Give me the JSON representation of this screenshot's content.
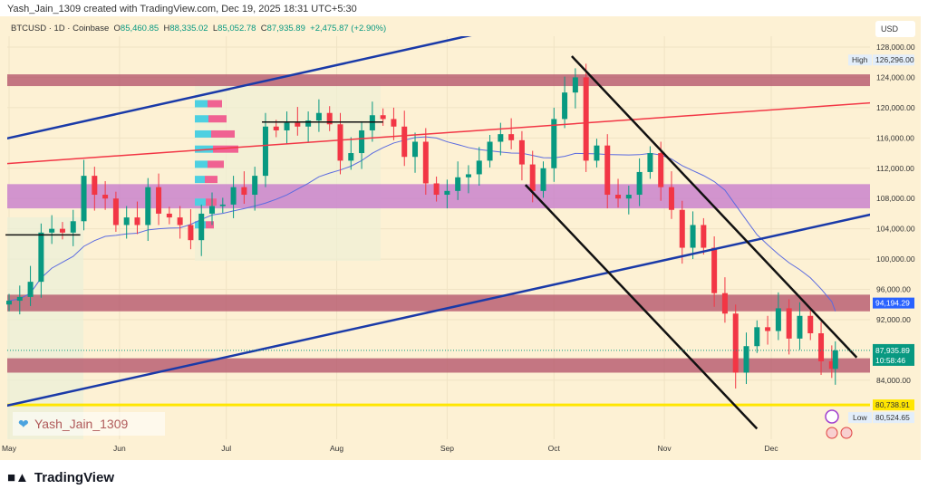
{
  "header": {
    "attribution": "Yash_Jain_1309 created with TradingView.com, Dec 19, 2025 18:31 UTC+5:30"
  },
  "legend": {
    "symbol": "BTCUSD · 1D · Coinbase",
    "o_label": "O",
    "o": "85,460.85",
    "h_label": "H",
    "h": "88,335.02",
    "l_label": "L",
    "l": "85,052.78",
    "c_label": "C",
    "c": "87,935.89",
    "change": "+2,475.87 (+2.90%)"
  },
  "watermark": {
    "text": "Yash_Jain_1309",
    "icon": "heart-icon"
  },
  "brand": {
    "text": "TradingView"
  },
  "currency": "USD",
  "colors": {
    "background": "#fdf1d4",
    "up": "#089981",
    "down": "#f23645",
    "ma": "#5b6be0",
    "channel": "#1a3aa8",
    "red_line": "#f23645",
    "zone_red": "#b5576d",
    "zone_purple": "#c77dcc",
    "support_yellow": "#ffe600",
    "last_price": "#089981",
    "ma_label": "#2962ff"
  },
  "chart_data": {
    "type": "candlestick",
    "symbol": "BTCUSD",
    "interval": "1D",
    "exchange": "Coinbase",
    "ylim": [
      78000,
      131000
    ],
    "xlim": [
      "2025-04-30",
      "2025-12-31"
    ],
    "y_ticks": [
      "128,000.00",
      "124,000.00",
      "120,000.00",
      "116,000.00",
      "112,000.00",
      "108,000.00",
      "104,000.00",
      "100,000.00",
      "96,000.00",
      "92,000.00",
      "84,000.00"
    ],
    "y_tick_values": [
      128000,
      124000,
      120000,
      116000,
      112000,
      108000,
      104000,
      100000,
      96000,
      92000,
      84000
    ],
    "x_ticks": [
      [
        "2025-05-01",
        "May"
      ],
      [
        "2025-06-01",
        "Jun"
      ],
      [
        "2025-07-01",
        "Jul"
      ],
      [
        "2025-08-01",
        "Aug"
      ],
      [
        "2025-09-01",
        "Sep"
      ],
      [
        "2025-10-01",
        "Oct"
      ],
      [
        "2025-11-01",
        "Nov"
      ],
      [
        "2025-12-01",
        "Dec"
      ]
    ],
    "closes": [
      [
        "2025-05-01",
        94500
      ],
      [
        "2025-05-04",
        95000
      ],
      [
        "2025-05-07",
        97000
      ],
      [
        "2025-05-10",
        103500
      ],
      [
        "2025-05-13",
        104000
      ],
      [
        "2025-05-16",
        103500
      ],
      [
        "2025-05-19",
        105000
      ],
      [
        "2025-05-22",
        111000
      ],
      [
        "2025-05-25",
        108500
      ],
      [
        "2025-05-28",
        108000
      ],
      [
        "2025-05-31",
        104500
      ],
      [
        "2025-06-03",
        105500
      ],
      [
        "2025-06-06",
        104500
      ],
      [
        "2025-06-09",
        109500
      ],
      [
        "2025-06-12",
        106000
      ],
      [
        "2025-06-15",
        105500
      ],
      [
        "2025-06-18",
        104500
      ],
      [
        "2025-06-21",
        102500
      ],
      [
        "2025-06-24",
        106000
      ],
      [
        "2025-06-27",
        107000
      ],
      [
        "2025-06-30",
        107200
      ],
      [
        "2025-07-03",
        109500
      ],
      [
        "2025-07-06",
        108500
      ],
      [
        "2025-07-09",
        111000
      ],
      [
        "2025-07-12",
        117500
      ],
      [
        "2025-07-15",
        117000
      ],
      [
        "2025-07-18",
        118000
      ],
      [
        "2025-07-21",
        117500
      ],
      [
        "2025-07-24",
        118300
      ],
      [
        "2025-07-27",
        119300
      ],
      [
        "2025-07-30",
        117800
      ],
      [
        "2025-08-02",
        113000
      ],
      [
        "2025-08-05",
        114000
      ],
      [
        "2025-08-08",
        117000
      ],
      [
        "2025-08-11",
        119000
      ],
      [
        "2025-08-14",
        118500
      ],
      [
        "2025-08-17",
        117500
      ],
      [
        "2025-08-20",
        113500
      ],
      [
        "2025-08-23",
        115500
      ],
      [
        "2025-08-26",
        110000
      ],
      [
        "2025-08-29",
        108500
      ],
      [
        "2025-09-01",
        109000
      ],
      [
        "2025-09-04",
        110800
      ],
      [
        "2025-09-07",
        111200
      ],
      [
        "2025-09-10",
        113000
      ],
      [
        "2025-09-13",
        115500
      ],
      [
        "2025-09-16",
        116500
      ],
      [
        "2025-09-19",
        115700
      ],
      [
        "2025-09-22",
        112500
      ],
      [
        "2025-09-25",
        109000
      ],
      [
        "2025-09-28",
        112000
      ],
      [
        "2025-10-01",
        118500
      ],
      [
        "2025-10-04",
        122000
      ],
      [
        "2025-10-07",
        124000
      ],
      [
        "2025-10-10",
        113000
      ],
      [
        "2025-10-13",
        115000
      ],
      [
        "2025-10-16",
        108500
      ],
      [
        "2025-10-19",
        108000
      ],
      [
        "2025-10-22",
        108500
      ],
      [
        "2025-10-25",
        111500
      ],
      [
        "2025-10-28",
        114000
      ],
      [
        "2025-10-31",
        109500
      ],
      [
        "2025-11-03",
        106500
      ],
      [
        "2025-11-06",
        101500
      ],
      [
        "2025-11-09",
        104500
      ],
      [
        "2025-11-12",
        101500
      ],
      [
        "2025-11-15",
        95500
      ],
      [
        "2025-11-18",
        92800
      ],
      [
        "2025-11-21",
        85000
      ],
      [
        "2025-11-24",
        88500
      ],
      [
        "2025-11-27",
        91000
      ],
      [
        "2025-11-30",
        90500
      ],
      [
        "2025-12-03",
        93500
      ],
      [
        "2025-12-06",
        89500
      ],
      [
        "2025-12-09",
        92500
      ],
      [
        "2025-12-12",
        90200
      ],
      [
        "2025-12-15",
        86500
      ],
      [
        "2025-12-18",
        85500
      ],
      [
        "2025-12-19",
        87935.89
      ]
    ],
    "moving_average": {
      "last": "94,194.29",
      "last_value": 94194.29
    },
    "last_price": {
      "value": 87935.89,
      "label": "87,935.89",
      "countdown": "10:58:46"
    },
    "high": {
      "label": "High",
      "value": "126,296.00"
    },
    "low": {
      "label": "Low",
      "value": "80,524.65"
    },
    "support_level": {
      "value": 80738.91,
      "label": "80,738.91"
    },
    "zones": [
      {
        "from": 122850,
        "to": 124400,
        "color": "zone_red"
      },
      {
        "from": 106700,
        "to": 109900,
        "color": "zone_purple"
      },
      {
        "from": 93100,
        "to": 95300,
        "color": "zone_red"
      },
      {
        "from": 85000,
        "to": 86900,
        "color": "zone_red"
      }
    ],
    "trendlines": [
      {
        "from": [
          "2025-04-30",
          115900
        ],
        "to": [
          "2025-10-01",
          132000
        ],
        "color": "channel"
      },
      {
        "from": [
          "2025-04-30",
          80600
        ],
        "to": [
          "2025-12-31",
          106100
        ],
        "color": "channel"
      },
      {
        "from": [
          "2025-04-30",
          112600
        ],
        "to": [
          "2025-12-31",
          120700
        ],
        "color": "red_line"
      },
      {
        "from": [
          "2025-10-06",
          126800
        ],
        "to": [
          "2025-12-25",
          87000
        ],
        "color": "black"
      },
      {
        "from": [
          "2025-09-23",
          109800
        ],
        "to": [
          "2025-11-27",
          77600
        ],
        "color": "black"
      }
    ],
    "horizontal_rays": [
      {
        "from": "2025-07-11",
        "to": "2025-08-14",
        "value": 118100
      },
      {
        "from": "2025-04-30",
        "to": "2025-05-21",
        "value": 103200
      }
    ]
  }
}
